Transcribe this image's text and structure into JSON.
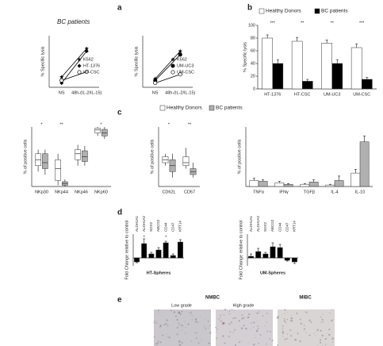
{
  "panel_labels": [
    "a",
    "b",
    "c",
    "d",
    "e"
  ],
  "chart_data": [
    {
      "type": "line",
      "title": "BC patients",
      "y_label": "% Specific lysis",
      "categories": [
        "NS",
        "48h-(IL-2/IL-15)"
      ],
      "ylim": [
        0,
        60
      ],
      "series": [
        {
          "name": "K562",
          "marker": "star",
          "color": "#000000",
          "values": [
            12,
            45
          ]
        },
        {
          "name": "HT-1376",
          "marker": "diamond",
          "color": "#000000",
          "values": [
            5,
            42
          ]
        },
        {
          "name": "HT-CSC",
          "marker": "open-circle",
          "color": "#000000",
          "values": [
            8,
            18
          ]
        }
      ]
    },
    {
      "type": "line",
      "y_label": "% Specific lysis",
      "categories": [
        "NS",
        "48h-(IL-2/IL-15)"
      ],
      "ylim": [
        0,
        60
      ],
      "series": [
        {
          "name": "K562",
          "marker": "star",
          "color": "#000000",
          "values": [
            10,
            42
          ]
        },
        {
          "name": "UM-UC3",
          "marker": "circle",
          "color": "#000000",
          "values": [
            8,
            38
          ]
        },
        {
          "name": "UM-CSC",
          "marker": "open-circle",
          "color": "#000000",
          "values": [
            5,
            15
          ]
        }
      ]
    },
    {
      "type": "bar",
      "y_label": "% Specific lysis",
      "categories": [
        "HT-1376",
        "HT-CSC",
        "UM-UC3",
        "UM-CSC"
      ],
      "ylim": [
        0,
        100
      ],
      "yticks": [
        0,
        20,
        40,
        60,
        80,
        100
      ],
      "series": [
        {
          "name": "Healthy Donors",
          "color": "#ffffff",
          "values": [
            80,
            75,
            72,
            65
          ],
          "errors": [
            5,
            6,
            5,
            6
          ]
        },
        {
          "name": "BC patients",
          "color": "#000000",
          "values": [
            40,
            12,
            40,
            15
          ],
          "errors": [
            6,
            3,
            6,
            3
          ]
        }
      ],
      "annotations": [
        "***",
        "**",
        "**",
        "***"
      ]
    },
    {
      "type": "box",
      "y_label": "% of positive cells",
      "categories": [
        "NKp30",
        "NKp44",
        "NKp46",
        "NKp60"
      ],
      "ylim": [
        0,
        100
      ],
      "series": [
        {
          "color": "#ffffff",
          "median": [
            45,
            30,
            55,
            95
          ],
          "q1": [
            35,
            10,
            45,
            90
          ],
          "q3": [
            55,
            45,
            62,
            98
          ],
          "min": [
            25,
            2,
            35,
            85
          ],
          "max": [
            62,
            55,
            70,
            100
          ]
        },
        {
          "color": "#b0b0b0",
          "median": [
            40,
            5,
            50,
            90
          ],
          "q1": [
            30,
            2,
            42,
            85
          ],
          "q3": [
            55,
            8,
            60,
            96
          ],
          "min": [
            20,
            0,
            35,
            80
          ],
          "max": [
            62,
            12,
            68,
            100
          ]
        }
      ],
      "annotations": [
        "*",
        "**",
        "*"
      ]
    },
    {
      "type": "box",
      "y_label": "% of positive cells",
      "categories": [
        "CD62L",
        "CD57"
      ],
      "ylim": [
        0,
        100
      ],
      "series": [
        {
          "name": "Healthy Donors",
          "color": "#ffffff",
          "median": [
            45,
            40
          ],
          "q1": [
            40,
            35
          ],
          "q3": [
            50,
            50
          ],
          "min": [
            35,
            30
          ],
          "max": [
            55,
            65
          ]
        },
        {
          "name": "BC patients",
          "color": "#b0b0b0",
          "median": [
            35,
            25
          ],
          "q1": [
            25,
            20
          ],
          "q3": [
            45,
            30
          ],
          "min": [
            15,
            15
          ],
          "max": [
            55,
            40
          ]
        }
      ],
      "annotations": [
        "*",
        "**"
      ]
    },
    {
      "type": "bar",
      "y_label": "% of positive cells",
      "categories": [
        "TNFα",
        "IFNγ",
        "TGFβ",
        "IL-4",
        "IL-10"
      ],
      "ylim": [
        0,
        80
      ],
      "series": [
        {
          "color": "#ffffff",
          "values": [
            8,
            5,
            3,
            2,
            18
          ],
          "errors": [
            3,
            2,
            1,
            1,
            5
          ]
        },
        {
          "color": "#b0b0b0",
          "values": [
            7,
            3,
            6,
            8,
            60
          ],
          "errors": [
            2,
            1,
            3,
            6,
            8
          ]
        }
      ]
    },
    {
      "type": "bar",
      "y_label": "Fold Change relative to control",
      "x_label": "HT-Spheres",
      "category_label_position": "top",
      "categories": [
        "ALDH1A1",
        "ALDH1A2",
        "SOX2",
        "ABCG2",
        "CD44",
        "CD47",
        "KRT14"
      ],
      "ylim": [
        -1,
        3
      ],
      "color": "#000000",
      "values": [
        -0.5,
        1.8,
        0.5,
        1.0,
        1.9,
        0.3,
        2.0
      ],
      "errors": [
        0.1,
        0.6,
        0.2,
        0.3,
        0.2,
        0.2,
        0.3
      ],
      "annotations": [
        "*",
        "*"
      ]
    },
    {
      "type": "bar",
      "y_label": "Fold Change relative to control",
      "x_label": "UM-Spheres",
      "category_label_position": "top",
      "categories": [
        "ALDH1A1",
        "ALDH1A2",
        "SOX2",
        "ABCG2",
        "CD44",
        "CD47",
        "KRT14"
      ],
      "ylim": [
        -1,
        3
      ],
      "color": "#000000",
      "values": [
        0.2,
        0.8,
        0.5,
        1.4,
        1.3,
        -0.3,
        -0.5
      ],
      "errors": [
        0.3,
        0.4,
        0.2,
        0.5,
        0.4,
        0.1,
        0.2
      ]
    }
  ],
  "panel_e": {
    "title": "NMBC",
    "grades": [
      "Low grade",
      "High grade"
    ],
    "other": "MIBC"
  }
}
